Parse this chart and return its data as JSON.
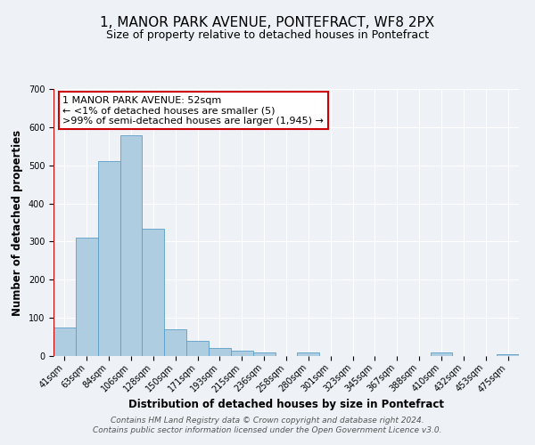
{
  "title": "1, MANOR PARK AVENUE, PONTEFRACT, WF8 2PX",
  "subtitle": "Size of property relative to detached houses in Pontefract",
  "xlabel": "Distribution of detached houses by size in Pontefract",
  "ylabel": "Number of detached properties",
  "bin_labels": [
    "41sqm",
    "63sqm",
    "84sqm",
    "106sqm",
    "128sqm",
    "150sqm",
    "171sqm",
    "193sqm",
    "215sqm",
    "236sqm",
    "258sqm",
    "280sqm",
    "301sqm",
    "323sqm",
    "345sqm",
    "367sqm",
    "388sqm",
    "410sqm",
    "432sqm",
    "453sqm",
    "475sqm"
  ],
  "bar_heights": [
    75,
    311,
    511,
    578,
    333,
    70,
    40,
    20,
    15,
    10,
    0,
    10,
    0,
    0,
    0,
    0,
    0,
    10,
    0,
    0,
    5
  ],
  "bar_color": "#aecde1",
  "bar_edge_color": "#5a9ec9",
  "property_line_color": "#cc0000",
  "annotation_text": "1 MANOR PARK AVENUE: 52sqm\n← <1% of detached houses are smaller (5)\n>99% of semi-detached houses are larger (1,945) →",
  "annotation_box_color": "#cc0000",
  "ylim": [
    0,
    700
  ],
  "yticks": [
    0,
    100,
    200,
    300,
    400,
    500,
    600,
    700
  ],
  "footer_line1": "Contains HM Land Registry data © Crown copyright and database right 2024.",
  "footer_line2": "Contains public sector information licensed under the Open Government Licence v3.0.",
  "background_color": "#eef2f7",
  "grid_color": "#ffffff",
  "title_fontsize": 11,
  "subtitle_fontsize": 9,
  "axis_label_fontsize": 8.5,
  "tick_fontsize": 7,
  "footer_fontsize": 6.5,
  "annotation_fontsize": 8
}
